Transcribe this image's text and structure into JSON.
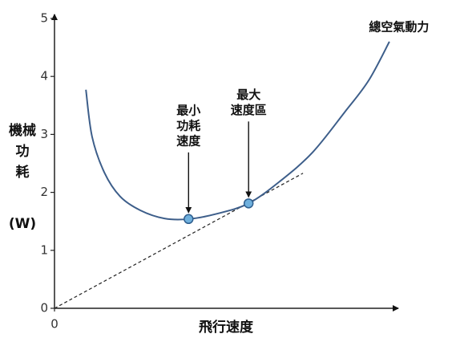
{
  "chart_data": {
    "type": "line",
    "x_label": "飛行速度",
    "y_label_lines": [
      "機械",
      "功",
      "耗"
    ],
    "y_unit": "(W)",
    "xlim": [
      0,
      6.1
    ],
    "ylim": [
      0,
      5
    ],
    "xticks": [
      0
    ],
    "yticks": [
      0,
      1,
      2,
      3,
      4,
      5
    ],
    "series": [
      {
        "name": "總空氣動力",
        "color": "#3d5e8a",
        "x": [
          0.56,
          0.67,
          0.89,
          1.17,
          1.53,
          1.96,
          2.39,
          2.89,
          3.46,
          4.03,
          4.6,
          5.17,
          5.6,
          5.97
        ],
        "values": [
          3.77,
          2.96,
          2.34,
          1.93,
          1.69,
          1.55,
          1.54,
          1.63,
          1.81,
          2.2,
          2.69,
          3.38,
          3.93,
          4.6
        ]
      }
    ],
    "tangent": {
      "x": [
        0,
        4.43
      ],
      "y": [
        0,
        2.33
      ]
    },
    "annotations": [
      {
        "text_lines": [
          "最小",
          "功耗",
          "速度"
        ],
        "x": 2.39,
        "y": 1.54
      },
      {
        "text_lines": [
          "最大",
          "速度區"
        ],
        "x": 3.46,
        "y": 1.81
      }
    ]
  }
}
